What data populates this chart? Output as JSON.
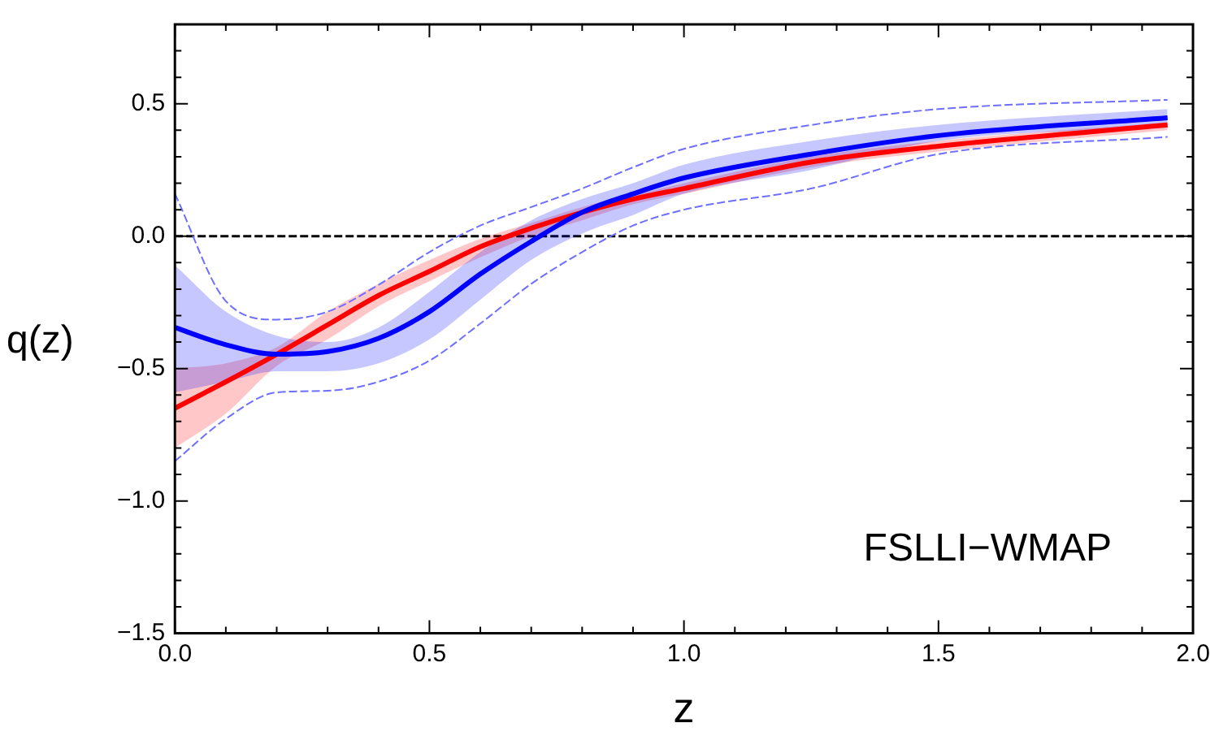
{
  "chart_data": {
    "type": "line",
    "xlabel": "z",
    "ylabel": "q(z)",
    "x": [
      0,
      0.1,
      0.2,
      0.3,
      0.4,
      0.5,
      0.6,
      0.7,
      0.8,
      0.9,
      1.0,
      1.25,
      1.5,
      1.95
    ],
    "series": [
      {
        "color": "#0000ff",
        "values": [
          -0.345,
          -0.41,
          -0.446,
          -0.436,
          -0.386,
          -0.285,
          -0.143,
          -0.02,
          0.09,
          0.16,
          0.22,
          0.31,
          0.38,
          0.447
        ],
        "lower": [
          -0.59,
          -0.55,
          -0.51,
          -0.51,
          -0.48,
          -0.39,
          -0.24,
          -0.09,
          0.01,
          0.08,
          0.16,
          0.25,
          0.36,
          0.41
        ],
        "upper": [
          -0.11,
          -0.285,
          -0.376,
          -0.4,
          -0.345,
          -0.21,
          -0.06,
          0.06,
          0.14,
          0.2,
          0.27,
          0.36,
          0.42,
          0.48
        ]
      },
      {
        "color": "#6f6fff",
        "line_style": "dashed",
        "values": [
          0.16,
          -0.245,
          -0.315,
          -0.285,
          -0.184,
          -0.06,
          0.04,
          0.11,
          0.18,
          0.26,
          0.33,
          0.42,
          0.48,
          0.515
        ]
      },
      {
        "color": "#6f6fff",
        "line_style": "dashed",
        "values": [
          -0.85,
          -0.69,
          -0.59,
          -0.584,
          -0.55,
          -0.47,
          -0.33,
          -0.18,
          -0.06,
          0.04,
          0.1,
          0.18,
          0.31,
          0.375
        ]
      },
      {
        "color": "#ff0000",
        "values": [
          -0.65,
          -0.55,
          -0.446,
          -0.335,
          -0.224,
          -0.133,
          -0.04,
          0.03,
          0.09,
          0.14,
          0.18,
          0.28,
          0.34,
          0.42
        ],
        "lower": [
          -0.8,
          -0.67,
          -0.49,
          -0.39,
          -0.265,
          -0.17,
          -0.08,
          0.0,
          0.06,
          0.12,
          0.16,
          0.26,
          0.32,
          0.4
        ],
        "upper": [
          -0.5,
          -0.48,
          -0.42,
          -0.285,
          -0.18,
          -0.09,
          -0.01,
          0.05,
          0.11,
          0.155,
          0.2,
          0.3,
          0.36,
          0.43
        ]
      }
    ],
    "xlim": [
      0,
      2
    ],
    "xticks": [
      {
        "value": 0,
        "label": "0.0"
      },
      {
        "value": 0.1,
        "label": null
      },
      {
        "value": 0.2,
        "label": null
      },
      {
        "value": 0.3,
        "label": null
      },
      {
        "value": 0.4,
        "label": null
      },
      {
        "value": 0.5,
        "label": "0.5"
      },
      {
        "value": 0.6,
        "label": null
      },
      {
        "value": 0.7,
        "label": null
      },
      {
        "value": 0.8,
        "label": null
      },
      {
        "value": 0.9,
        "label": null
      },
      {
        "value": 1,
        "label": "1.0"
      },
      {
        "value": 1.1,
        "label": null
      },
      {
        "value": 1.2,
        "label": null
      },
      {
        "value": 1.3,
        "label": null
      },
      {
        "value": 1.4,
        "label": null
      },
      {
        "value": 1.5,
        "label": "1.5"
      },
      {
        "value": 1.6,
        "label": null
      },
      {
        "value": 1.7,
        "label": null
      },
      {
        "value": 1.8,
        "label": null
      },
      {
        "value": 1.9,
        "label": null
      },
      {
        "value": 2,
        "label": "2.0"
      }
    ],
    "ylim": [
      -1.5,
      0.8
    ],
    "yticks": [
      {
        "value": -1.5,
        "label": "−1.5"
      },
      {
        "value": -1.4,
        "label": null
      },
      {
        "value": -1.3,
        "label": null
      },
      {
        "value": -1.2,
        "label": null
      },
      {
        "value": -1.1,
        "label": null
      },
      {
        "value": -1,
        "label": "−1.0"
      },
      {
        "value": -0.9,
        "label": null
      },
      {
        "value": -0.8,
        "label": null
      },
      {
        "value": -0.7,
        "label": null
      },
      {
        "value": -0.6,
        "label": null
      },
      {
        "value": -0.5,
        "label": "−0.5"
      },
      {
        "value": -0.4,
        "label": null
      },
      {
        "value": -0.3,
        "label": null
      },
      {
        "value": -0.2,
        "label": null
      },
      {
        "value": -0.1,
        "label": null
      },
      {
        "value": 0,
        "label": "0.0"
      },
      {
        "value": 0.1,
        "label": null
      },
      {
        "value": 0.2,
        "label": null
      },
      {
        "value": 0.3,
        "label": null
      },
      {
        "value": 0.4,
        "label": null
      },
      {
        "value": 0.5,
        "label": "0.5"
      },
      {
        "value": 0.6,
        "label": null
      },
      {
        "value": 0.7,
        "label": null
      }
    ],
    "ref_lines": [
      {
        "axis": "y",
        "value": 0,
        "color": "#000000",
        "line_style": "dashed"
      }
    ],
    "annotations": [
      "FSLLI−WMAP"
    ],
    "grid": false,
    "legend": false,
    "marker": "none",
    "line_style": "solid"
  }
}
